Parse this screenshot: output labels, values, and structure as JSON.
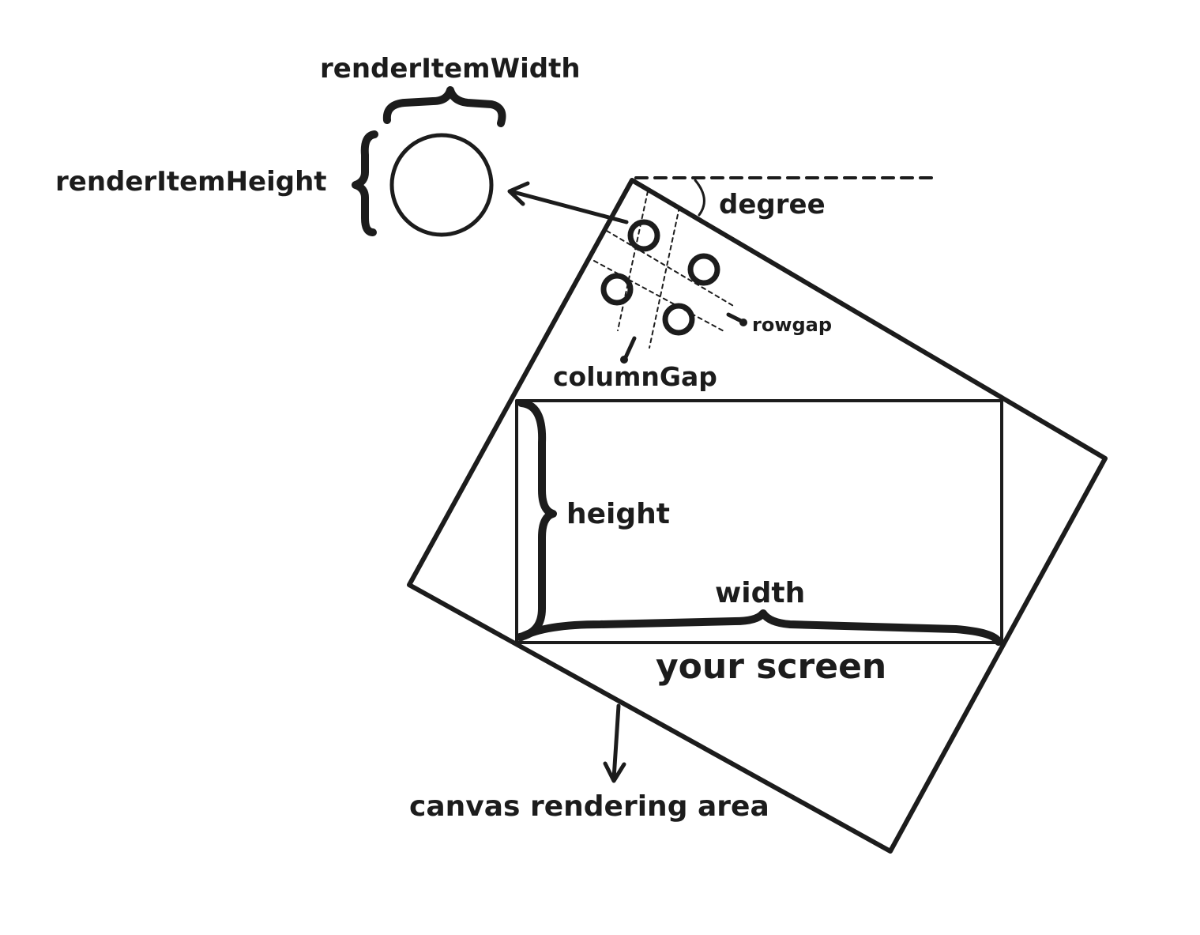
{
  "labels": {
    "render_item_width": "renderItemWidth",
    "render_item_height": "renderItemHeight",
    "degree": "degree",
    "rowgap": "rowgap",
    "column_gap": "columnGap",
    "height": "height",
    "width": "width",
    "your_screen": "your screen",
    "canvas_rendering_area": "canvas rendering area"
  },
  "colors": {
    "ink": "#1c1c1c",
    "background": "#ffffff"
  }
}
